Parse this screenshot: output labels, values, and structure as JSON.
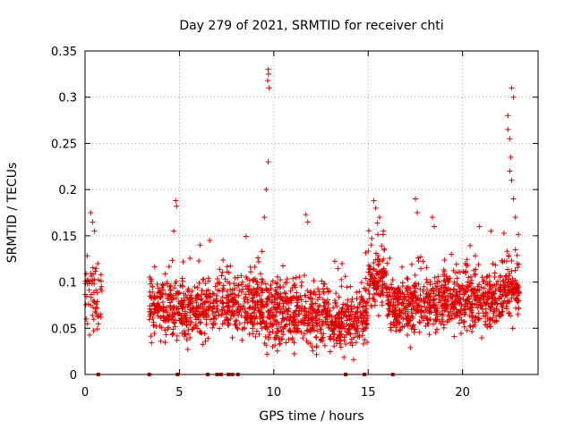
{
  "chart_data": {
    "type": "scatter",
    "title": "Day 279 of 2021, SRMTID for receiver chti",
    "xlabel": "GPS time / hours",
    "ylabel": "SRMTID / TECUs",
    "xlim": [
      0,
      24
    ],
    "ylim": [
      0,
      0.35
    ],
    "x_ticks": [
      0,
      5,
      10,
      15,
      20
    ],
    "x_tick_labels": [
      "0",
      "5",
      "10",
      "15",
      "20"
    ],
    "y_ticks": [
      0,
      0.05,
      0.1,
      0.15,
      0.2,
      0.25,
      0.3,
      0.35
    ],
    "y_tick_labels": [
      "0",
      "0.05",
      "0.1",
      "0.15",
      "0.2",
      "0.25",
      "0.3",
      "0.35"
    ],
    "grid": true,
    "marker": "+",
    "series_color": "#dd0000",
    "zero_markers_x": [
      0.7,
      3.4,
      4.9,
      6.5,
      7.0,
      7.2,
      7.6,
      7.8,
      8.1,
      13.8,
      14.8,
      16.3
    ],
    "clusters": [
      {
        "x_range": [
          0.0,
          0.9
        ],
        "n": 60,
        "y_base": 0.085,
        "y_spread": 0.04
      },
      {
        "x_range": [
          3.4,
          4.2
        ],
        "n": 90,
        "y_base": 0.075,
        "y_spread": 0.03
      },
      {
        "x_range": [
          4.2,
          6.5
        ],
        "n": 260,
        "y_base": 0.07,
        "y_spread": 0.03
      },
      {
        "x_range": [
          6.5,
          9.5
        ],
        "n": 320,
        "y_base": 0.075,
        "y_spread": 0.035
      },
      {
        "x_range": [
          9.5,
          13.0
        ],
        "n": 420,
        "y_base": 0.065,
        "y_spread": 0.035
      },
      {
        "x_range": [
          13.0,
          15.0
        ],
        "n": 240,
        "y_base": 0.06,
        "y_spread": 0.03
      },
      {
        "x_range": [
          15.0,
          16.0
        ],
        "n": 120,
        "y_base": 0.1,
        "y_spread": 0.03
      },
      {
        "x_range": [
          16.0,
          19.0
        ],
        "n": 360,
        "y_base": 0.075,
        "y_spread": 0.03
      },
      {
        "x_range": [
          19.0,
          22.0
        ],
        "n": 360,
        "y_base": 0.08,
        "y_spread": 0.03
      },
      {
        "x_range": [
          22.0,
          23.0
        ],
        "n": 130,
        "y_base": 0.09,
        "y_spread": 0.03
      }
    ],
    "peaks": [
      {
        "x": 0.3,
        "y": 0.175
      },
      {
        "x": 0.4,
        "y": 0.165
      },
      {
        "x": 0.5,
        "y": 0.155
      },
      {
        "x": 4.8,
        "y": 0.188
      },
      {
        "x": 4.85,
        "y": 0.182
      },
      {
        "x": 4.7,
        "y": 0.155
      },
      {
        "x": 6.1,
        "y": 0.14
      },
      {
        "x": 6.6,
        "y": 0.145
      },
      {
        "x": 9.7,
        "y": 0.33
      },
      {
        "x": 9.72,
        "y": 0.325
      },
      {
        "x": 9.68,
        "y": 0.318
      },
      {
        "x": 9.75,
        "y": 0.31
      },
      {
        "x": 9.7,
        "y": 0.23
      },
      {
        "x": 9.6,
        "y": 0.2
      },
      {
        "x": 9.5,
        "y": 0.17
      },
      {
        "x": 11.7,
        "y": 0.173
      },
      {
        "x": 11.8,
        "y": 0.165
      },
      {
        "x": 15.3,
        "y": 0.188
      },
      {
        "x": 15.4,
        "y": 0.18
      },
      {
        "x": 15.6,
        "y": 0.17
      },
      {
        "x": 15.8,
        "y": 0.155
      },
      {
        "x": 17.5,
        "y": 0.19
      },
      {
        "x": 17.6,
        "y": 0.175
      },
      {
        "x": 18.4,
        "y": 0.17
      },
      {
        "x": 18.5,
        "y": 0.16
      },
      {
        "x": 20.9,
        "y": 0.16
      },
      {
        "x": 21.5,
        "y": 0.155
      },
      {
        "x": 22.4,
        "y": 0.28
      },
      {
        "x": 22.5,
        "y": 0.255
      },
      {
        "x": 22.6,
        "y": 0.31
      },
      {
        "x": 22.7,
        "y": 0.3
      },
      {
        "x": 22.55,
        "y": 0.235
      },
      {
        "x": 22.6,
        "y": 0.21
      },
      {
        "x": 22.7,
        "y": 0.19
      },
      {
        "x": 22.8,
        "y": 0.17
      },
      {
        "x": 22.5,
        "y": 0.22
      },
      {
        "x": 22.4,
        "y": 0.265
      }
    ]
  }
}
